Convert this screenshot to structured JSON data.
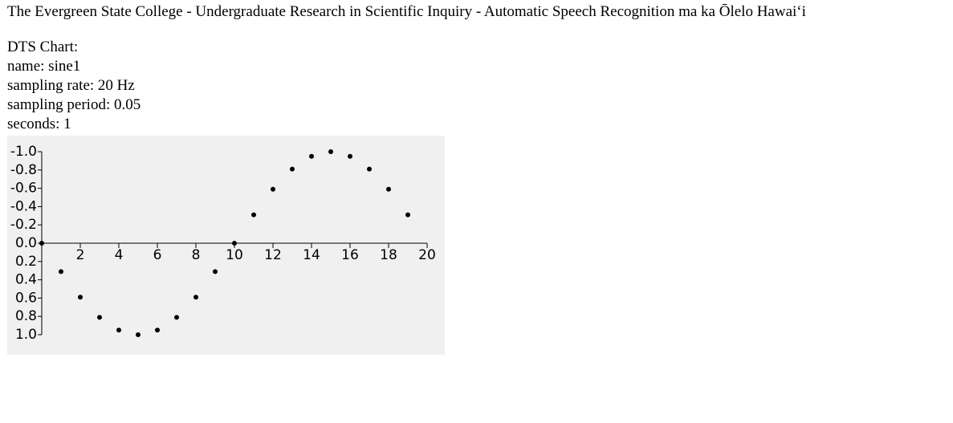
{
  "header": {
    "title": "The Evergreen State College - Undergraduate Research in Scientific Inquiry - Automatic Speech Recognition ma ka Ōlelo Hawaiʻi"
  },
  "info": [
    "DTS Chart:",
    "name: sine1",
    "sampling rate: 20 Hz",
    "sampling period: 0.05",
    "seconds: 1"
  ],
  "chart_data": {
    "type": "scatter",
    "x": [
      0,
      1,
      2,
      3,
      4,
      5,
      6,
      7,
      8,
      9,
      10,
      11,
      12,
      13,
      14,
      15,
      16,
      17,
      18,
      19
    ],
    "values": [
      0,
      0.31,
      0.59,
      0.81,
      0.95,
      1,
      0.95,
      0.81,
      0.59,
      0.31,
      0,
      -0.31,
      -0.59,
      -0.81,
      -0.95,
      -1,
      -0.95,
      -0.81,
      -0.59,
      -0.31
    ],
    "color": "#000000",
    "xlim": [
      0,
      20
    ],
    "xticks": [
      2,
      4,
      6,
      8,
      10,
      12,
      14,
      16,
      18,
      20
    ],
    "ylim": [
      1,
      -1
    ],
    "yticks": [
      {
        "value": -1,
        "label": "-1.0"
      },
      -0.8,
      -0.6,
      -0.4,
      -0.2,
      {
        "value": 0,
        "label": "0.0"
      },
      0.2,
      0.4,
      0.6,
      0.8,
      {
        "value": 1,
        "label": "1.0"
      }
    ]
  }
}
